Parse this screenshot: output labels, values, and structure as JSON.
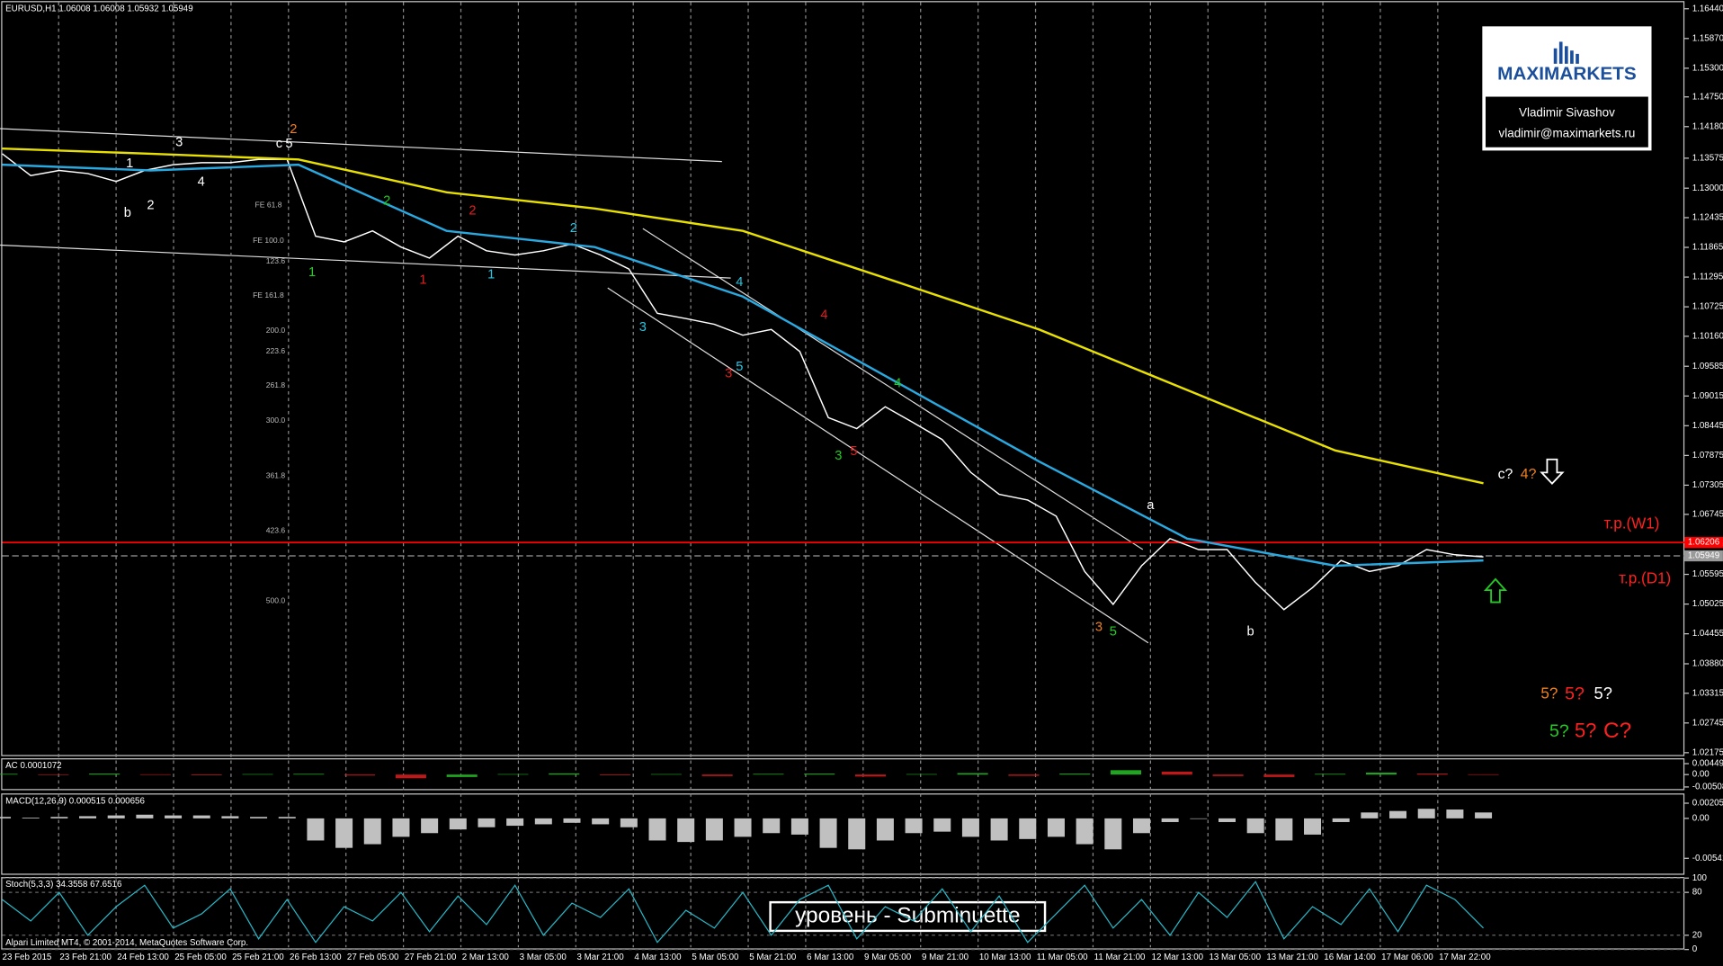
{
  "header": "EURUSD,H1  1.06008 1.06008 1.05932 1.05949",
  "logo": {
    "brand": "MAXIMARKETS",
    "name": "Vladimir Sivashov",
    "email": "vladimir@maximarkets.ru"
  },
  "copyright": "Alpari Limited MT4, © 2001-2014, MetaQuotes Software Corp.",
  "caption": "уровень - Subminuette",
  "chart_data": {
    "type": "line",
    "ylim": [
      1.0211,
      1.16566
    ],
    "yticks": [
      {
        "value": 1.1644,
        "label": "1.16440"
      },
      {
        "value": 1.1587,
        "label": "1.15870"
      },
      {
        "value": 1.153,
        "label": "1.15300"
      },
      {
        "value": 1.1475,
        "label": "1.14750"
      },
      {
        "value": 1.1418,
        "label": "1.14180"
      },
      1.13575,
      {
        "value": 1.13,
        "label": "1.13000"
      },
      1.12435,
      1.11865,
      1.11295,
      1.10725,
      {
        "value": 1.1016,
        "label": "1.10160"
      },
      1.09585,
      1.09015,
      1.08445,
      1.07875,
      1.07305,
      1.06745,
      1.06175,
      1.05595,
      1.05025,
      1.04455,
      {
        "value": 1.0388,
        "label": "1.03880"
      },
      1.03315,
      1.02745,
      1.02175
    ],
    "time_labels": [
      "23 Feb 2015",
      "23 Feb 21:00",
      "24 Feb 13:00",
      "25 Feb 05:00",
      "25 Feb 21:00",
      "26 Feb 13:00",
      "27 Feb 05:00",
      "27 Feb 21:00",
      "2 Mar 13:00",
      "3 Mar 05:00",
      "3 Mar 21:00",
      "4 Mar 13:00",
      "5 Mar 05:00",
      "5 Mar 21:00",
      "6 Mar 13:00",
      "9 Mar 05:00",
      "9 Mar 21:00",
      "10 Mar 13:00",
      "11 Mar 05:00",
      "11 Mar 21:00",
      "12 Mar 13:00",
      "13 Mar 05:00",
      "13 Mar 21:00",
      "16 Mar 14:00",
      "17 Mar 06:00",
      "17 Mar 22:00"
    ],
    "series": [
      {
        "color": "#ffffff",
        "values": [
          1.1366,
          1.1324,
          1.1334,
          1.1328,
          1.1313,
          1.1334,
          1.1345,
          1.1349,
          1.1349,
          1.1355,
          1.1355,
          1.1208,
          1.1197,
          1.1218,
          1.1187,
          1.1166,
          1.1208,
          1.118,
          1.1172,
          1.118,
          1.1193,
          1.1172,
          1.1145,
          1.106,
          1.105,
          1.1039,
          1.1018,
          1.1029,
          1.0987,
          1.086,
          1.0839,
          1.0881,
          1.085,
          1.0818,
          1.0755,
          1.0713,
          1.0702,
          1.0671,
          1.0565,
          1.0502,
          1.0576,
          1.0628,
          1.0607,
          1.0607,
          1.0544,
          1.0492,
          1.0534,
          1.0586,
          1.0565,
          1.0576,
          1.0607,
          1.0597,
          1.0593
        ]
      },
      {
        "color": "#e8e000",
        "values": [
          1.1376,
          1.1366,
          1.1355,
          1.1292,
          1.1261,
          1.1218,
          1.1124,
          1.1029,
          1.0913,
          1.0797,
          1.0734
        ]
      },
      {
        "color": "#29a9e0",
        "values": [
          1.1345,
          1.1334,
          1.1345,
          1.1218,
          1.1187,
          1.1092,
          1.0934,
          1.0776,
          1.0628,
          1.0576,
          1.0586
        ]
      }
    ],
    "levels": [
      {
        "value": 1.06206,
        "label": "1.06206",
        "color": "#ff0000"
      },
      {
        "value": 1.05949,
        "label": "1.05949",
        "color": "#9a9a9a"
      }
    ],
    "fibo_labels": [
      "FE 61.8",
      "FE 100.0",
      "123.6",
      "FE 161.8",
      "200.0",
      "223.6",
      "261.8",
      "300.0",
      "361.8",
      "423.6",
      "500.0"
    ],
    "wave_labels": [
      {
        "text": "3",
        "color": "#ffffff"
      },
      {
        "text": "4",
        "color": "#ffffff"
      },
      {
        "text": "1",
        "color": "#ffffff"
      },
      {
        "text": "b",
        "color": "#ffffff"
      },
      {
        "text": "2",
        "color": "#ffffff"
      },
      {
        "text": "c",
        "color": "#ffffff"
      },
      {
        "text": "2",
        "color": "#f08020"
      },
      {
        "text": "5",
        "color": "#ffffff"
      },
      {
        "text": "1",
        "color": "#22cc22"
      },
      {
        "text": "2",
        "color": "#22cc22"
      },
      {
        "text": "2",
        "color": "#e02020"
      },
      {
        "text": "1",
        "color": "#e02020"
      },
      {
        "text": "1",
        "color": "#29c4e0"
      },
      {
        "text": "2",
        "color": "#29c4e0"
      },
      {
        "text": "3",
        "color": "#29c4e0"
      },
      {
        "text": "4",
        "color": "#29c4e0"
      },
      {
        "text": "5",
        "color": "#29c4e0"
      },
      {
        "text": "3",
        "color": "#e02020"
      },
      {
        "text": "4",
        "color": "#e02020"
      },
      {
        "text": "4",
        "color": "#22cc22"
      },
      {
        "text": "3",
        "color": "#22cc22"
      },
      {
        "text": "5",
        "color": "#e02020"
      },
      {
        "text": "a",
        "color": "#ffffff"
      },
      {
        "text": "3",
        "color": "#f08020"
      },
      {
        "text": "5",
        "color": "#22cc22"
      },
      {
        "text": "b",
        "color": "#ffffff"
      }
    ],
    "annotations": [
      {
        "text": "c?",
        "color": "#ffffff"
      },
      {
        "text": "4?",
        "color": "#f08020"
      },
      {
        "text": "т.р.(W1)",
        "color": "#ff2020"
      },
      {
        "text": "т.р.(D1)",
        "color": "#ff2020"
      },
      {
        "text": "5?",
        "color": "#f08020"
      },
      {
        "text": "5?",
        "color": "#ff2020"
      },
      {
        "text": "5?",
        "color": "#ffffff"
      },
      {
        "text": "5?",
        "color": "#22cc22"
      },
      {
        "text": "5?",
        "color": "#ff2020"
      },
      {
        "text": "C?",
        "color": "#ff2020"
      }
    ]
  },
  "ac": {
    "label": "AC 0.0001072",
    "ylim": [
      -0.00595,
      0.00624
    ],
    "yticks": [
      {
        "value": 0.004495,
        "label": "0.004495"
      },
      {
        "value": 0,
        "label": "0.00"
      },
      {
        "value": -0.00508,
        "label": "-0.005080"
      }
    ],
    "up_color": "#1fa51f",
    "down_color": "#c01818",
    "values": [
      0.0003,
      -0.0002,
      0.0004,
      0.0001,
      -0.0003,
      0.0002,
      0.0003,
      -0.0004,
      -0.0015,
      -0.001,
      0.0002,
      0.0005,
      -0.0003,
      0.0002,
      -0.0006,
      0.0003,
      0.0004,
      -0.0008,
      0.0002,
      0.0006,
      -0.0005,
      0.0004,
      0.0018,
      0.0012,
      -0.0006,
      -0.001,
      0.0003,
      0.0008,
      0.0004,
      0.0001
    ]
  },
  "macd": {
    "label": "MACD(12,26,9) 0.000515 0.000656",
    "ylim": [
      -0.0075,
      0.00323
    ],
    "color": "#c0c0c0",
    "yticks": [
      {
        "value": 0.002058,
        "label": "0.002058"
      },
      {
        "value": 0,
        "label": "0.00"
      },
      {
        "value": -0.005415,
        "label": "-0.005415"
      }
    ],
    "values": [
      0.0002,
      0.0001,
      0.0002,
      0.0003,
      0.0004,
      0.0005,
      0.0004,
      0.0004,
      0.0003,
      0.0002,
      0.0002,
      -0.003,
      -0.004,
      -0.0035,
      -0.0025,
      -0.002,
      -0.0015,
      -0.0012,
      -0.001,
      -0.0008,
      -0.0006,
      -0.0008,
      -0.0012,
      -0.003,
      -0.0032,
      -0.003,
      -0.0025,
      -0.002,
      -0.0022,
      -0.004,
      -0.0042,
      -0.003,
      -0.002,
      -0.0018,
      -0.0025,
      -0.003,
      -0.0028,
      -0.0025,
      -0.0035,
      -0.0042,
      -0.002,
      -0.0005,
      0,
      -0.0005,
      -0.002,
      -0.003,
      -0.0022,
      -0.0005,
      0.0008,
      0.001,
      0.0013,
      0.0012,
      0.0008
    ]
  },
  "stoch": {
    "label": "Stoch(5,3,3) 34.3558 67.6516",
    "ylim": [
      0,
      100
    ],
    "yticks": [
      100,
      80,
      20,
      0
    ],
    "color": "#29b8c8",
    "values": [
      70,
      40,
      80,
      20,
      60,
      90,
      30,
      50,
      85,
      15,
      70,
      10,
      60,
      40,
      80,
      25,
      75,
      35,
      90,
      20,
      65,
      45,
      85,
      10,
      55,
      30,
      80,
      20,
      70,
      90,
      15,
      60,
      40,
      85,
      25,
      75,
      10,
      50,
      90,
      30,
      70,
      20,
      80,
      45,
      95,
      15,
      60,
      35,
      85,
      25,
      90,
      70,
      30
    ]
  }
}
